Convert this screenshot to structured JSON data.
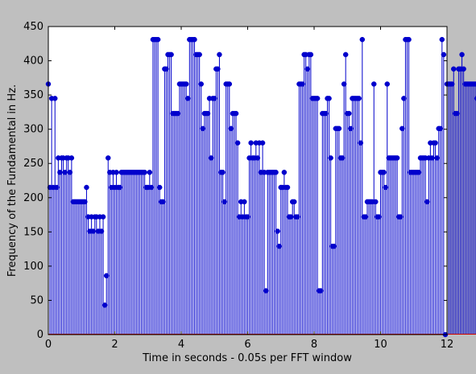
{
  "chart_data": {
    "type": "stem",
    "xlabel": "Time in seconds - 0.05s per FFT window",
    "ylabel": "Frequency of the Fundamental in Hz.",
    "xlim": [
      0,
      12
    ],
    "ylim": [
      0,
      450
    ],
    "xticks": [
      0,
      2,
      4,
      6,
      8,
      10,
      12
    ],
    "yticks": [
      0,
      50,
      100,
      150,
      200,
      250,
      300,
      350,
      400,
      450
    ],
    "grid": false,
    "marker_color": "#0000cc",
    "stem_color": "#0000cc",
    "x_step": 0.05,
    "values": [
      366,
      215,
      345,
      215,
      345,
      215,
      258,
      237,
      258,
      258,
      237,
      258,
      258,
      237,
      258,
      194,
      194,
      194,
      194,
      194,
      194,
      194,
      194,
      215,
      172,
      151,
      172,
      151,
      172,
      172,
      151,
      172,
      151,
      172,
      43,
      86,
      258,
      237,
      215,
      237,
      215,
      237,
      215,
      215,
      237,
      237,
      237,
      237,
      237,
      237,
      237,
      237,
      237,
      237,
      237,
      237,
      237,
      237,
      237,
      215,
      215,
      237,
      215,
      431,
      431,
      431,
      431,
      215,
      194,
      194,
      388,
      388,
      409,
      409,
      409,
      323,
      323,
      323,
      323,
      366,
      366,
      366,
      366,
      366,
      345,
      431,
      431,
      431,
      431,
      409,
      409,
      409,
      366,
      301,
      323,
      323,
      323,
      345,
      258,
      345,
      345,
      388,
      388,
      409,
      237,
      237,
      194,
      366,
      366,
      366,
      301,
      323,
      323,
      323,
      280,
      172,
      194,
      172,
      194,
      172,
      172,
      258,
      280,
      258,
      258,
      280,
      258,
      280,
      237,
      280,
      237,
      64,
      237,
      237,
      237,
      237,
      237,
      237,
      151,
      129,
      215,
      215,
      237,
      215,
      215,
      172,
      172,
      194,
      194,
      172,
      172,
      366,
      366,
      366,
      409,
      409,
      388,
      409,
      409,
      345,
      345,
      345,
      345,
      64,
      64,
      323,
      323,
      323,
      345,
      345,
      258,
      129,
      129,
      301,
      301,
      301,
      258,
      258,
      366,
      409,
      323,
      323,
      301,
      345,
      345,
      345,
      345,
      345,
      280,
      431,
      172,
      172,
      194,
      194,
      194,
      194,
      366,
      194,
      172,
      172,
      237,
      237,
      237,
      215,
      366,
      258,
      258,
      258,
      258,
      258,
      258,
      172,
      172,
      301,
      345,
      431,
      431,
      431,
      237,
      237,
      237,
      237,
      237,
      237,
      258,
      258,
      258,
      258,
      194,
      258,
      280,
      258,
      280,
      280,
      258,
      301,
      301,
      431,
      409,
      0,
      366,
      366,
      366,
      366,
      388,
      323,
      323,
      388,
      388,
      409,
      388,
      366,
      366,
      366,
      366,
      366,
      366,
      366,
      345,
      345,
      345,
      345,
      258,
      323,
      323,
      323,
      345,
      345,
      301,
      301,
      280,
      301,
      301,
      345,
      323,
      345,
      345,
      345,
      345,
      366,
      366,
      366,
      366,
      366,
      366,
      431,
      431,
      431,
      431,
      431,
      431,
      431,
      366,
      366,
      366,
      366,
      431,
      431,
      431,
      431,
      431,
      431,
      431,
      431,
      280,
      409,
      431,
      431,
      431,
      431
    ]
  }
}
